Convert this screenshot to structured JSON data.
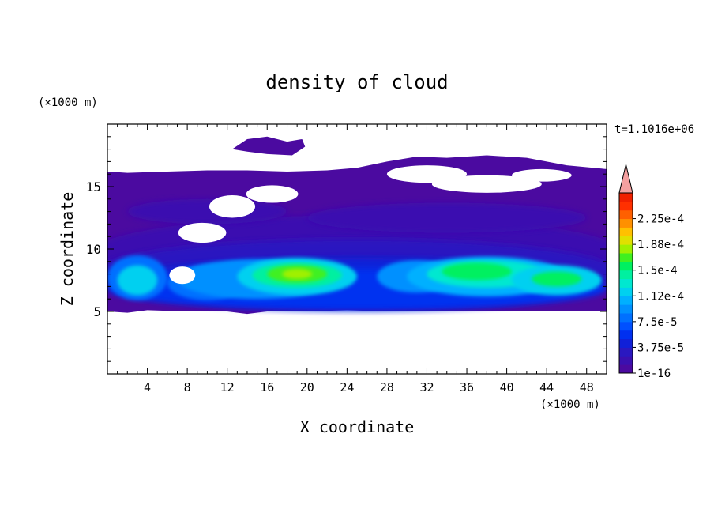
{
  "chart_data": {
    "type": "heatmap",
    "title": "density of cloud",
    "xlabel": "X coordinate",
    "ylabel": "Z coordinate",
    "x_unit": "(×1000 m)",
    "y_unit": "(×1000 m)",
    "time_label": "t=1.1016e+06",
    "xlim": [
      0,
      50
    ],
    "ylim": [
      0,
      20
    ],
    "x_ticks": [
      4,
      8,
      12,
      16,
      20,
      24,
      28,
      32,
      36,
      40,
      44,
      48
    ],
    "y_ticks": [
      5,
      10,
      15
    ],
    "colorbar": {
      "labels": [
        "1e-16",
        "3.75e-5",
        "7.5e-5",
        "1.12e-4",
        "1.5e-4",
        "1.88e-4",
        "2.25e-4"
      ],
      "min": 0,
      "max": 0.00025,
      "levels": 20,
      "extend": "max",
      "colors": [
        "#4b0aa0",
        "#3a10b0",
        "#2a18c0",
        "#1020d8",
        "#0030f0",
        "#0050ff",
        "#0070ff",
        "#0090ff",
        "#00b0ff",
        "#00d0f0",
        "#00e8d0",
        "#00f0a0",
        "#00f060",
        "#40f020",
        "#a0f000",
        "#e0e000",
        "#ffc000",
        "#ff9000",
        "#ff6000",
        "#ff3000",
        "#f02000"
      ],
      "overflow_color": "#f4a0a0"
    },
    "field_description": {
      "cloud_base_km": 5,
      "cloud_top_km": 16.5,
      "max_density_location_km": [
        19,
        8
      ],
      "max_density_value": 0.00017
    }
  }
}
